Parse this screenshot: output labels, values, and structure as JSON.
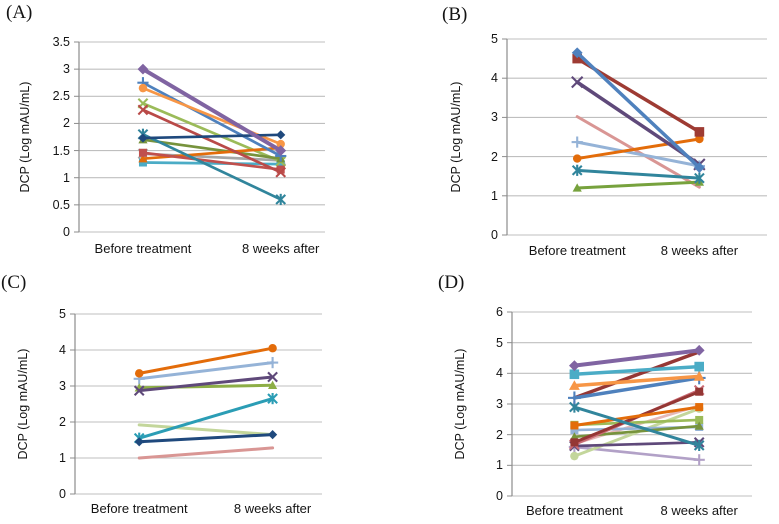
{
  "figure": {
    "background": "#FFFFFF"
  },
  "colors": {
    "grid": "#BFBFBF",
    "axis": "#8C8C8C",
    "text": "#141414"
  },
  "chart_data": [
    {
      "panel": "(A)",
      "type": "line",
      "ylabel": "DCP (Log mAU/mL)",
      "categories": [
        "Before treatment",
        "8 weeks after"
      ],
      "ylim": [
        0,
        3.5
      ],
      "ytick_values": [
        0,
        0.5,
        1,
        1.5,
        2,
        2.5,
        3,
        3.5
      ],
      "yticks": [
        "0",
        "0.5",
        "1",
        "1.5",
        "2",
        "2.5",
        "3",
        "3.5"
      ],
      "grid": true,
      "legend": "none",
      "series": [
        {
          "marker": "x",
          "color": "#A6A6A6",
          "values": [
            1.44,
            1.32
          ]
        },
        {
          "marker": "square",
          "color": "#4BACC6",
          "values": [
            1.28,
            1.25
          ]
        },
        {
          "marker": "x",
          "color": "#9BBB59",
          "values": [
            2.37,
            1.3
          ]
        },
        {
          "marker": "triangle",
          "color": "#77933C",
          "values": [
            1.7,
            1.35
          ]
        },
        {
          "marker": "triangle",
          "color": "#E36C0A",
          "values": [
            1.35,
            1.55
          ]
        },
        {
          "marker": "square",
          "color": "#C0504D",
          "values": [
            1.46,
            1.15
          ]
        },
        {
          "marker": "x",
          "color": "#B94A48",
          "values": [
            2.25,
            1.1
          ]
        },
        {
          "marker": "plus",
          "color": "#4F81BD",
          "values": [
            2.75,
            1.4
          ]
        },
        {
          "marker": "circle",
          "color": "#F79646",
          "values": [
            2.65,
            1.62
          ]
        },
        {
          "marker": "asterisk",
          "color": "#31859C",
          "values": [
            1.8,
            0.6
          ]
        },
        {
          "marker": "diamond",
          "color": "#1F497D",
          "values": [
            1.73,
            1.79
          ]
        },
        {
          "marker": "diamond",
          "color": "#8064A2",
          "width": 4,
          "values": [
            3.0,
            1.5
          ]
        }
      ]
    },
    {
      "panel": "(B)",
      "type": "line",
      "ylabel": "DCP (Log mAU/mL)",
      "categories": [
        "Before treatment",
        "8 weeks after"
      ],
      "ylim": [
        0,
        5
      ],
      "ytick_values": [
        0,
        1,
        2,
        3,
        4,
        5
      ],
      "yticks": [
        "0",
        "1",
        "2",
        "3",
        "4",
        "5"
      ],
      "grid": true,
      "legend": "none",
      "series": [
        {
          "marker": "none",
          "color": "#D99694",
          "width": 3,
          "values": [
            3.02,
            1.22
          ]
        },
        {
          "marker": "plus",
          "color": "#95B3D7",
          "width": 3,
          "values": [
            2.37,
            1.76
          ]
        },
        {
          "marker": "triangle",
          "color": "#77A23D",
          "width": 3,
          "values": [
            1.2,
            1.35
          ]
        },
        {
          "marker": "asterisk",
          "color": "#31859C",
          "width": 3,
          "values": [
            1.65,
            1.45
          ]
        },
        {
          "marker": "circle",
          "color": "#E36C0A",
          "width": 3,
          "values": [
            1.95,
            2.45
          ]
        },
        {
          "marker": "x",
          "color": "#5F497A",
          "width": 3.5,
          "values": [
            3.9,
            1.8
          ]
        },
        {
          "marker": "square",
          "color": "#9E3B33",
          "width": 3.5,
          "values": [
            4.5,
            2.63
          ]
        },
        {
          "marker": "diamond",
          "color": "#4F81BD",
          "width": 3.5,
          "values": [
            4.65,
            1.72
          ]
        }
      ]
    },
    {
      "panel": "(C)",
      "type": "line",
      "ylabel": "DCP (Log mAU/mL)",
      "categories": [
        "Before treatment",
        "8 weeks after"
      ],
      "ylim": [
        0,
        5
      ],
      "ytick_values": [
        0,
        1,
        2,
        3,
        4,
        5
      ],
      "yticks": [
        "0",
        "1",
        "2",
        "3",
        "4",
        "5"
      ],
      "grid": true,
      "legend": "none",
      "series": [
        {
          "marker": "none",
          "color": "#C3D69B",
          "width": 3,
          "values": [
            1.92,
            1.65
          ]
        },
        {
          "marker": "none",
          "color": "#D99694",
          "width": 3,
          "values": [
            1.0,
            1.28
          ]
        },
        {
          "marker": "plus",
          "color": "#95B3D7",
          "width": 3,
          "values": [
            3.2,
            3.65
          ]
        },
        {
          "marker": "triangle",
          "color": "#8DAE46",
          "width": 3,
          "values": [
            2.95,
            3.02
          ]
        },
        {
          "marker": "x",
          "color": "#5F497A",
          "width": 3,
          "values": [
            2.87,
            3.25
          ]
        },
        {
          "marker": "asterisk",
          "color": "#2B9DB5",
          "width": 3,
          "values": [
            1.55,
            2.65
          ]
        },
        {
          "marker": "diamond",
          "color": "#1F497D",
          "width": 3,
          "values": [
            1.45,
            1.65
          ]
        },
        {
          "marker": "circle",
          "color": "#E36C0A",
          "width": 3,
          "values": [
            3.35,
            4.05
          ]
        }
      ]
    },
    {
      "panel": "(D)",
      "type": "line",
      "ylabel": "DCP (Log mAU/mL)",
      "categories": [
        "Before treatment",
        "8 weeks after"
      ],
      "ylim": [
        0,
        6
      ],
      "ytick_values": [
        0,
        1,
        2,
        3,
        4,
        5,
        6
      ],
      "yticks": [
        "0",
        "1",
        "2",
        "3",
        "4",
        "5",
        "6"
      ],
      "grid": true,
      "legend": "none",
      "series": [
        {
          "marker": "none",
          "color": "#E5B8B7",
          "values": [
            1.7,
            2.95
          ]
        },
        {
          "marker": "plus",
          "color": "#B2A1C7",
          "values": [
            1.6,
            1.18
          ]
        },
        {
          "marker": "circle",
          "color": "#C3D69B",
          "width": 3,
          "values": [
            1.3,
            2.85
          ]
        },
        {
          "marker": "square",
          "color": "#95B3D7",
          "values": [
            2.15,
            2.25
          ]
        },
        {
          "marker": "square",
          "color": "#9BBB59",
          "values": [
            2.32,
            2.48
          ]
        },
        {
          "marker": "triangle",
          "color": "#77933C",
          "values": [
            1.93,
            2.28
          ]
        },
        {
          "marker": "x",
          "color": "#5F497A",
          "values": [
            1.63,
            1.75
          ]
        },
        {
          "marker": "x",
          "color": "#C96A74",
          "width": 3,
          "values": [
            1.68,
            3.45
          ]
        },
        {
          "marker": "square",
          "color": "#943634",
          "width": 3,
          "values": [
            1.75,
            3.4
          ]
        },
        {
          "marker": "square",
          "color": "#E36C0A",
          "width": 3,
          "values": [
            2.3,
            2.9
          ]
        },
        {
          "marker": "asterisk",
          "color": "#31859C",
          "width": 3,
          "values": [
            2.9,
            1.65
          ]
        },
        {
          "marker": "none",
          "color": "#953735",
          "width": 3.5,
          "values": [
            3.2,
            4.7
          ]
        },
        {
          "marker": "plus",
          "color": "#4F81BD",
          "width": 3.5,
          "values": [
            3.2,
            3.85
          ]
        },
        {
          "marker": "triangle",
          "color": "#F79646",
          "width": 3.5,
          "values": [
            3.6,
            3.9
          ]
        },
        {
          "marker": "square",
          "color": "#4BACC6",
          "width": 3.5,
          "values": [
            3.97,
            4.22
          ]
        },
        {
          "marker": "diamond",
          "color": "#8064A2",
          "width": 4,
          "values": [
            4.25,
            4.75
          ]
        }
      ]
    }
  ]
}
